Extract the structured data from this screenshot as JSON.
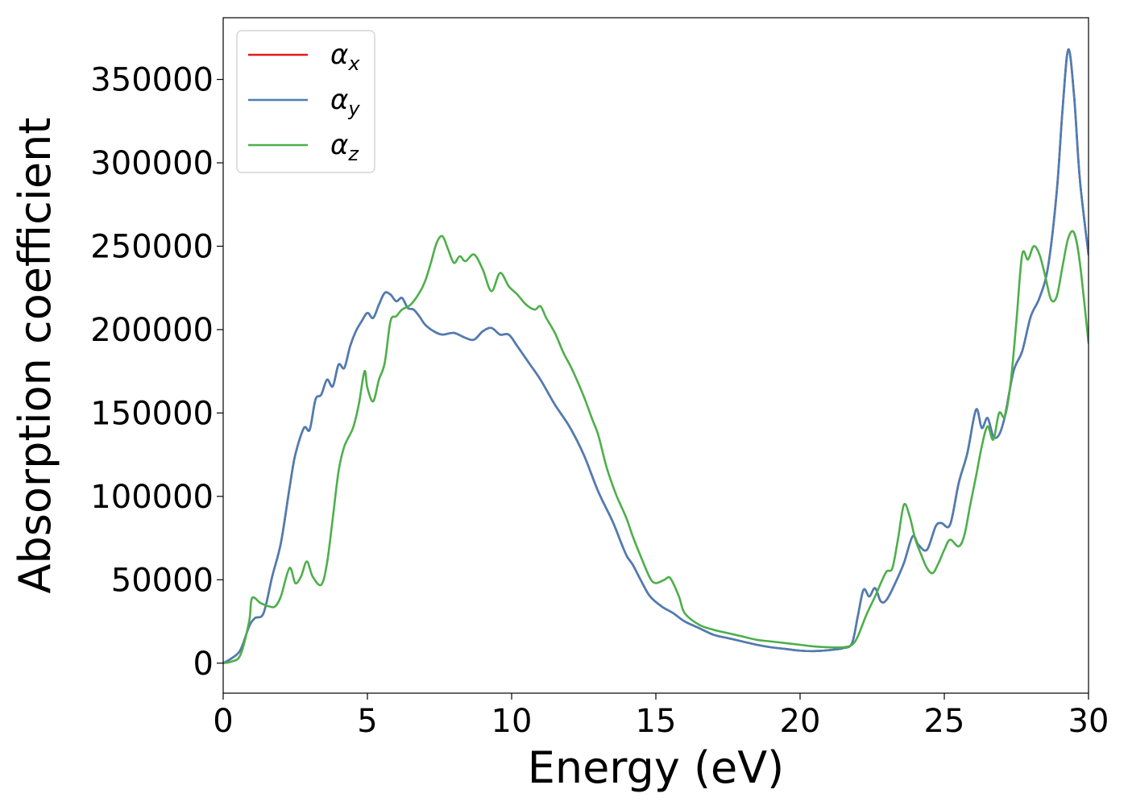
{
  "chart_data": {
    "type": "line",
    "title": "",
    "xlabel": "Energy (eV)",
    "ylabel": "Absorption coefficient",
    "xlim": [
      0,
      30
    ],
    "ylim": [
      -18000,
      387000
    ],
    "x_ticks": [
      0,
      5,
      10,
      15,
      20,
      25,
      30
    ],
    "y_ticks": [
      0,
      50000,
      100000,
      150000,
      200000,
      250000,
      300000,
      350000
    ],
    "grid": false,
    "legend_position": "top-left",
    "series": [
      {
        "name": "α",
        "sub": "x",
        "color": "#e41a1c",
        "x": [
          0,
          0.3,
          0.6,
          0.9,
          1.1,
          1.4,
          1.7,
          2.0,
          2.3,
          2.5,
          2.8,
          3.0,
          3.2,
          3.4,
          3.6,
          3.8,
          4.0,
          4.2,
          4.4,
          4.6,
          4.8,
          5.0,
          5.2,
          5.4,
          5.6,
          5.8,
          6.0,
          6.2,
          6.4,
          6.6,
          6.8,
          7.0,
          7.3,
          7.6,
          8.0,
          8.4,
          8.7,
          9.0,
          9.3,
          9.6,
          9.9,
          10.2,
          10.6,
          11.0,
          11.5,
          12.0,
          12.5,
          13.0,
          13.5,
          13.8,
          14.0,
          14.2,
          14.5,
          14.8,
          15.2,
          15.6,
          16.0,
          16.5,
          17.0,
          17.5,
          18.0,
          18.5,
          19.0,
          19.5,
          20.0,
          20.5,
          21.0,
          21.5,
          21.8,
          22.0,
          22.2,
          22.4,
          22.6,
          22.8,
          23.0,
          23.3,
          23.6,
          23.9,
          24.1,
          24.4,
          24.7,
          24.9,
          25.2,
          25.5,
          25.8,
          26.1,
          26.3,
          26.5,
          26.7,
          26.9,
          27.1,
          27.4,
          27.7,
          28.0,
          28.3,
          28.6,
          28.9,
          29.1,
          29.3,
          29.5,
          29.7,
          30.0
        ],
        "y": [
          0,
          3000,
          8000,
          22000,
          27000,
          30000,
          52000,
          72000,
          105000,
          125000,
          141000,
          140000,
          158000,
          161000,
          170000,
          166000,
          179000,
          177000,
          190000,
          199000,
          205000,
          210000,
          207000,
          215000,
          222000,
          221000,
          217000,
          219000,
          213000,
          212000,
          208000,
          203000,
          199000,
          197000,
          198000,
          195000,
          194000,
          199000,
          201000,
          197000,
          197000,
          190000,
          180000,
          170000,
          155000,
          142000,
          125000,
          103000,
          85000,
          72000,
          64000,
          59000,
          49000,
          40000,
          34000,
          30000,
          25000,
          21000,
          17000,
          15000,
          13000,
          11000,
          9500,
          8500,
          7500,
          7200,
          7800,
          9000,
          12000,
          28000,
          44000,
          40000,
          45000,
          37000,
          38000,
          48000,
          60000,
          76000,
          71000,
          68000,
          82000,
          84000,
          83000,
          108000,
          126000,
          152000,
          141000,
          147000,
          136000,
          137000,
          148000,
          175000,
          187000,
          208000,
          219000,
          238000,
          283000,
          332000,
          368000,
          340000,
          290000,
          245000
        ]
      },
      {
        "name": "α",
        "sub": "y",
        "color": "#4a7eb5",
        "x": [
          0,
          0.3,
          0.6,
          0.9,
          1.1,
          1.4,
          1.7,
          2.0,
          2.3,
          2.5,
          2.8,
          3.0,
          3.2,
          3.4,
          3.6,
          3.8,
          4.0,
          4.2,
          4.4,
          4.6,
          4.8,
          5.0,
          5.2,
          5.4,
          5.6,
          5.8,
          6.0,
          6.2,
          6.4,
          6.6,
          6.8,
          7.0,
          7.3,
          7.6,
          8.0,
          8.4,
          8.7,
          9.0,
          9.3,
          9.6,
          9.9,
          10.2,
          10.6,
          11.0,
          11.5,
          12.0,
          12.5,
          13.0,
          13.5,
          13.8,
          14.0,
          14.2,
          14.5,
          14.8,
          15.2,
          15.6,
          16.0,
          16.5,
          17.0,
          17.5,
          18.0,
          18.5,
          19.0,
          19.5,
          20.0,
          20.5,
          21.0,
          21.5,
          21.8,
          22.0,
          22.2,
          22.4,
          22.6,
          22.8,
          23.0,
          23.3,
          23.6,
          23.9,
          24.1,
          24.4,
          24.7,
          24.9,
          25.2,
          25.5,
          25.8,
          26.1,
          26.3,
          26.5,
          26.7,
          26.9,
          27.1,
          27.4,
          27.7,
          28.0,
          28.3,
          28.6,
          28.9,
          29.1,
          29.3,
          29.5,
          29.7,
          30.0
        ],
        "y": [
          0,
          3000,
          8000,
          22000,
          27000,
          30000,
          52000,
          72000,
          105000,
          125000,
          141000,
          140000,
          158000,
          161000,
          170000,
          166000,
          179000,
          177000,
          190000,
          199000,
          205000,
          210000,
          207000,
          215000,
          222000,
          221000,
          217000,
          219000,
          213000,
          212000,
          208000,
          203000,
          199000,
          197000,
          198000,
          195000,
          194000,
          199000,
          201000,
          197000,
          197000,
          190000,
          180000,
          170000,
          155000,
          142000,
          125000,
          103000,
          85000,
          72000,
          64000,
          59000,
          49000,
          40000,
          34000,
          30000,
          25000,
          21000,
          17000,
          15000,
          13000,
          11000,
          9500,
          8500,
          7500,
          7200,
          7800,
          9000,
          12000,
          28000,
          44000,
          40000,
          45000,
          37000,
          38000,
          48000,
          60000,
          76000,
          71000,
          68000,
          82000,
          84000,
          83000,
          108000,
          126000,
          152000,
          141000,
          147000,
          136000,
          137000,
          148000,
          175000,
          187000,
          208000,
          219000,
          238000,
          283000,
          332000,
          368000,
          340000,
          290000,
          245000
        ]
      },
      {
        "name": "α",
        "sub": "z",
        "color": "#4daf4a",
        "x": [
          0,
          0.3,
          0.6,
          0.9,
          1.0,
          1.3,
          1.6,
          1.8,
          2.0,
          2.3,
          2.5,
          2.7,
          2.9,
          3.1,
          3.4,
          3.6,
          3.8,
          4.0,
          4.2,
          4.5,
          4.7,
          4.9,
          5.0,
          5.2,
          5.4,
          5.6,
          5.8,
          6.0,
          6.2,
          6.5,
          6.8,
          7.0,
          7.2,
          7.4,
          7.6,
          7.8,
          8.0,
          8.2,
          8.4,
          8.7,
          9.0,
          9.3,
          9.6,
          9.9,
          10.2,
          10.5,
          10.8,
          11.0,
          11.2,
          11.5,
          11.8,
          12.1,
          12.5,
          12.8,
          13.0,
          13.3,
          13.6,
          13.8,
          14.0,
          14.2,
          14.5,
          14.8,
          15.0,
          15.3,
          15.5,
          15.8,
          16.0,
          16.5,
          17.0,
          17.5,
          18.0,
          18.5,
          19.0,
          19.5,
          20.0,
          20.5,
          21.0,
          21.5,
          21.8,
          22.0,
          22.3,
          22.6,
          22.8,
          23.0,
          23.2,
          23.4,
          23.6,
          23.8,
          24.0,
          24.2,
          24.4,
          24.6,
          24.8,
          25.0,
          25.2,
          25.5,
          25.7,
          25.9,
          26.1,
          26.3,
          26.5,
          26.7,
          26.9,
          27.1,
          27.3,
          27.5,
          27.7,
          27.9,
          28.1,
          28.3,
          28.5,
          28.7,
          28.9,
          29.1,
          29.3,
          29.5,
          29.7,
          30.0
        ],
        "y": [
          0,
          1000,
          5000,
          25000,
          39000,
          36000,
          34000,
          34000,
          40000,
          57000,
          48000,
          52000,
          61000,
          52000,
          47000,
          60000,
          87000,
          115000,
          130000,
          141000,
          155000,
          175000,
          165000,
          157000,
          170000,
          180000,
          205000,
          208000,
          212000,
          215000,
          222000,
          229000,
          240000,
          252000,
          256000,
          248000,
          240000,
          244000,
          241000,
          245000,
          236000,
          223000,
          234000,
          226000,
          221000,
          215000,
          212000,
          214000,
          207000,
          198000,
          186000,
          176000,
          160000,
          146000,
          137000,
          117000,
          102000,
          94000,
          86000,
          76000,
          63000,
          51000,
          48000,
          50000,
          51000,
          40000,
          30000,
          23000,
          20000,
          18000,
          16000,
          14000,
          13000,
          12000,
          11000,
          10000,
          9500,
          9500,
          11000,
          16000,
          29000,
          40000,
          48000,
          55000,
          57000,
          75000,
          95000,
          88000,
          74000,
          65000,
          57000,
          54000,
          60000,
          68000,
          74000,
          70000,
          77000,
          95000,
          112000,
          130000,
          142000,
          134000,
          150000,
          148000,
          168000,
          205000,
          245000,
          242000,
          250000,
          245000,
          232000,
          218000,
          220000,
          238000,
          255000,
          258000,
          240000,
          192000
        ]
      }
    ]
  }
}
